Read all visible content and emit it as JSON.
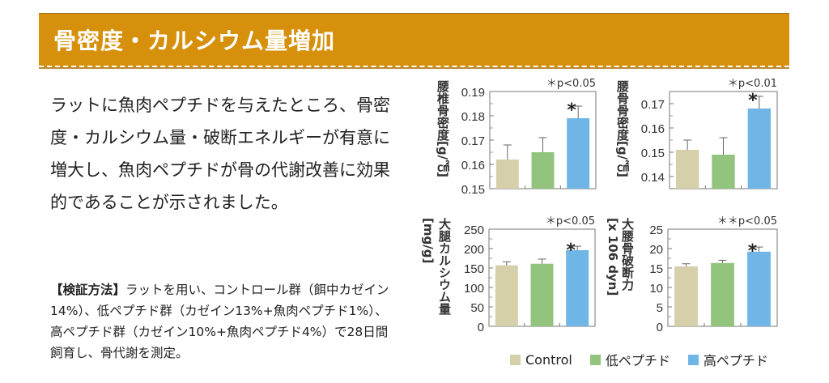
{
  "header": {
    "title": "骨密度・カルシウム量増加"
  },
  "lead_text": "ラットに魚肉ペプチドを与えたところ、骨密度・カルシウム量・破断エネルギーが有意に増大し、魚肉ペプチドが骨の代謝改善に効果的であることが示されました。",
  "method": {
    "label": "【検証方法】",
    "text": "ラットを用い、コントロール群（餌中カゼイン14%）、低ペプチド群（カゼイン13%+魚肉ペプチド1%）、高ペプチド群（カゼイン10%+魚肉ペプチド4%）で28日間飼育し、骨代謝を測定。"
  },
  "colors": {
    "band": "#d6900c",
    "control": "#d5cfaa",
    "low": "#93c47d",
    "high": "#6fb6e6"
  },
  "legend": [
    {
      "label": "Control",
      "color": "#d5cfaa"
    },
    {
      "label": "低ペプチド",
      "color": "#93c47d"
    },
    {
      "label": "高ペプチド",
      "color": "#6fb6e6"
    }
  ],
  "chart_data": [
    {
      "type": "bar",
      "title": "",
      "ylabel": "腰椎骨密度[g/㎠]",
      "significance": "＊p<0.05",
      "categories": [
        "Control",
        "低ペプチド",
        "高ペプチド"
      ],
      "values": [
        0.162,
        0.165,
        0.179
      ],
      "errors": [
        0.006,
        0.006,
        0.005
      ],
      "marked": [
        false,
        false,
        true
      ],
      "ylim": [
        0.15,
        0.19
      ],
      "ticks": [
        0.15,
        0.16,
        0.17,
        0.18,
        0.19
      ],
      "tick_labels": [
        "0.15",
        "0.16",
        "0.17",
        "0.18",
        "0.19"
      ]
    },
    {
      "type": "bar",
      "title": "",
      "ylabel": "腰骨骨密度[g/㎠]",
      "significance": "＊p<0.01",
      "categories": [
        "Control",
        "低ペプチド",
        "高ペプチド"
      ],
      "values": [
        0.151,
        0.149,
        0.168
      ],
      "errors": [
        0.004,
        0.007,
        0.005
      ],
      "marked": [
        false,
        false,
        true
      ],
      "ylim": [
        0.135,
        0.175
      ],
      "ticks": [
        0.14,
        0.15,
        0.16,
        0.17
      ],
      "tick_labels": [
        "0.14",
        "0.15",
        "0.16",
        "0.17"
      ]
    },
    {
      "type": "bar",
      "title": "",
      "ylabel": "大腿カルシウム量",
      "ylabel2": "[mg/g]",
      "significance": "＊p<0.05",
      "categories": [
        "Control",
        "低ペプチド",
        "高ペプチド"
      ],
      "values": [
        157,
        161,
        196
      ],
      "errors": [
        9,
        12,
        10
      ],
      "marked": [
        false,
        false,
        true
      ],
      "ylim": [
        0,
        250
      ],
      "ticks": [
        0,
        50,
        100,
        150,
        200,
        250
      ],
      "tick_labels": [
        "0",
        "50",
        "100",
        "150",
        "200",
        "250"
      ]
    },
    {
      "type": "bar",
      "title": "",
      "ylabel": "大腰骨破断力",
      "ylabel2": "[x 106 dyn]",
      "significance": "＊＊p<0.05",
      "categories": [
        "Control",
        "低ペプチド",
        "高ペプチド"
      ],
      "values": [
        15.4,
        16.3,
        19.2
      ],
      "errors": [
        0.7,
        0.7,
        1.2
      ],
      "marked": [
        false,
        false,
        true
      ],
      "ylim": [
        0,
        25
      ],
      "ticks": [
        0,
        5,
        10,
        15,
        20,
        25
      ],
      "tick_labels": [
        "0",
        "5",
        "10",
        "15",
        "20",
        "25"
      ]
    }
  ]
}
